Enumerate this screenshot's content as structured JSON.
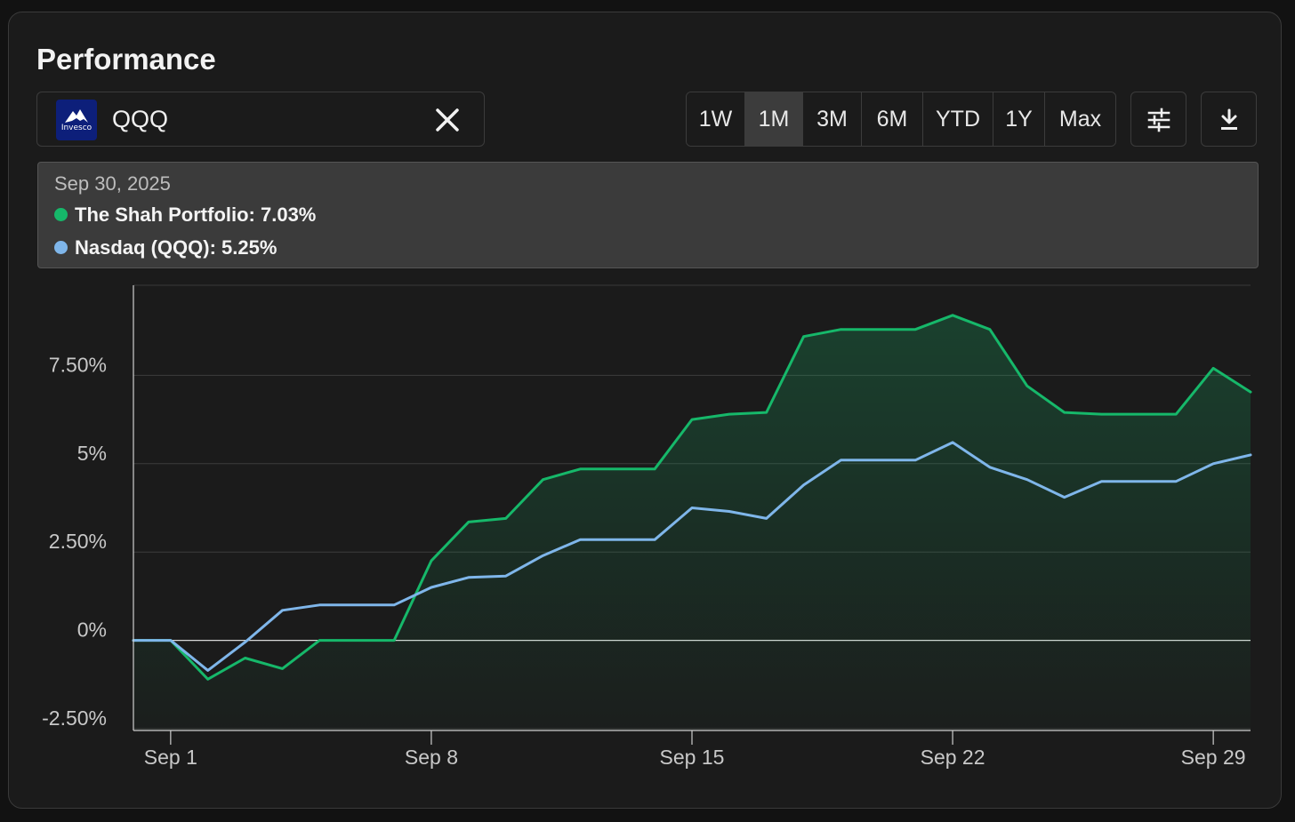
{
  "header": {
    "title": "Performance"
  },
  "ticker": {
    "symbol": "QQQ",
    "logo_text": "Invesco"
  },
  "ranges": [
    {
      "label": "1W",
      "active": false
    },
    {
      "label": "1M",
      "active": true
    },
    {
      "label": "3M",
      "active": false
    },
    {
      "label": "6M",
      "active": false
    },
    {
      "label": "YTD",
      "active": false
    },
    {
      "label": "1Y",
      "active": false
    },
    {
      "label": "Max",
      "active": false
    }
  ],
  "toolbar": {
    "settings_icon": "sliders-icon",
    "download_icon": "download-icon"
  },
  "tooltip": {
    "date": "Sep 30, 2025",
    "rows": [
      {
        "label": "The Shah Portfolio: 7.03%",
        "color": "#16b86a"
      },
      {
        "label": "Nasdaq (QQQ): 5.25%",
        "color": "#7fb6ea"
      }
    ]
  },
  "chart_data": {
    "type": "line",
    "x": [
      "Aug 31",
      "Sep 1",
      "Sep 2",
      "Sep 3",
      "Sep 4",
      "Sep 5",
      "Sep 6",
      "Sep 7",
      "Sep 8",
      "Sep 9",
      "Sep 10",
      "Sep 11",
      "Sep 12",
      "Sep 13",
      "Sep 14",
      "Sep 15",
      "Sep 16",
      "Sep 17",
      "Sep 18",
      "Sep 19",
      "Sep 20",
      "Sep 21",
      "Sep 22",
      "Sep 23",
      "Sep 24",
      "Sep 25",
      "Sep 26",
      "Sep 27",
      "Sep 28",
      "Sep 29",
      "Sep 30"
    ],
    "x_tick_labels": [
      {
        "x": "Sep 1",
        "label": "Sep 1"
      },
      {
        "x": "Sep 8",
        "label": "Sep 8"
      },
      {
        "x": "Sep 15",
        "label": "Sep 15"
      },
      {
        "x": "Sep 22",
        "label": "Sep 22"
      },
      {
        "x": "Sep 29",
        "label": "Sep 29"
      }
    ],
    "y_ticks": [
      {
        "value": 7.5,
        "label": "7.50%"
      },
      {
        "value": 5,
        "label": "5%"
      },
      {
        "value": 2.5,
        "label": "2.50%"
      },
      {
        "value": 0,
        "label": "0%"
      },
      {
        "value": -2.5,
        "label": "-2.50%"
      }
    ],
    "ylim": [
      -2.55,
      10.05
    ],
    "series": [
      {
        "name": "The Shah Portfolio",
        "color": "#16b86a",
        "filled": true,
        "values": [
          0,
          0,
          -1.1,
          -0.5,
          -0.8,
          0,
          0,
          0,
          2.25,
          3.35,
          3.45,
          4.55,
          4.85,
          4.85,
          4.85,
          6.25,
          6.4,
          6.45,
          8.6,
          8.8,
          8.8,
          8.8,
          9.2,
          8.8,
          7.2,
          6.45,
          6.4,
          6.4,
          6.4,
          7.7,
          7.03
        ]
      },
      {
        "name": "Nasdaq (QQQ)",
        "color": "#7fb6ea",
        "filled": false,
        "values": [
          0,
          0,
          -0.85,
          -0.05,
          0.85,
          1.0,
          1.0,
          1.0,
          1.5,
          1.78,
          1.82,
          2.4,
          2.85,
          2.85,
          2.85,
          3.75,
          3.65,
          3.45,
          4.4,
          5.1,
          5.1,
          5.1,
          5.6,
          4.9,
          4.55,
          4.05,
          4.5,
          4.5,
          4.5,
          5.0,
          5.25
        ]
      }
    ]
  }
}
